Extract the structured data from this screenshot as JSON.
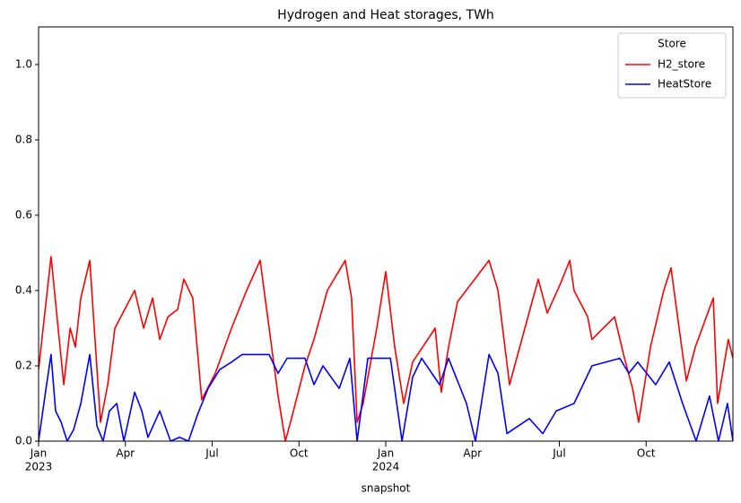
{
  "chart_data": {
    "type": "line",
    "title": "Hydrogen and Heat storages, TWh",
    "xlabel": "snapshot",
    "legend_title": "Store",
    "legend": "upper right",
    "xlim": [
      0,
      24
    ],
    "xticks": [
      {
        "value": 0,
        "label": "Jan"
      },
      {
        "value": 3,
        "label": "Apr"
      },
      {
        "value": 6,
        "label": "Jul"
      },
      {
        "value": 9,
        "label": "Oct"
      },
      {
        "value": 12,
        "label": "Jan"
      },
      {
        "value": 15,
        "label": "Apr"
      },
      {
        "value": 18,
        "label": "Jul"
      },
      {
        "value": 21,
        "label": "Oct"
      }
    ],
    "x_year_labels": [
      {
        "value": 0,
        "label": "2023"
      },
      {
        "value": 12,
        "label": "2024"
      }
    ],
    "ylim": [
      0,
      1.1
    ],
    "yticks": [
      {
        "value": 0,
        "label": "0.0"
      },
      0.2,
      0.4,
      0.6,
      0.8,
      {
        "value": 1,
        "label": "1.0"
      }
    ],
    "series": [
      {
        "name": "H2_store",
        "color": "#ff0000",
        "x": [
          0,
          0.43,
          0.87,
          1.09,
          1.27,
          1.46,
          1.77,
          2.14,
          2.39,
          2.64,
          3.32,
          3.63,
          3.94,
          4.19,
          4.47,
          4.81,
          5.02,
          5.33,
          5.64,
          6.11,
          6.67,
          7.19,
          7.66,
          7.97,
          8.28,
          8.53,
          8.74,
          9.21,
          9.52,
          9.98,
          10.6,
          10.82,
          11.01,
          11.22,
          11.69,
          12,
          12.31,
          12.62,
          12.93,
          13.71,
          13.92,
          14.17,
          14.48,
          15.57,
          15.88,
          16.28,
          16.81,
          17.27,
          17.58,
          18.05,
          18.36,
          18.51,
          18.98,
          19.13,
          19.91,
          20.22,
          20.53,
          20.74,
          21.15,
          21.61,
          21.86,
          22.14,
          22.39,
          22.7,
          23.32,
          23.47,
          23.84,
          24
        ],
        "values": [
          0.19,
          0.49,
          0.15,
          0.3,
          0.25,
          0.38,
          0.48,
          0.05,
          0.15,
          0.3,
          0.4,
          0.3,
          0.38,
          0.27,
          0.33,
          0.35,
          0.43,
          0.38,
          0.11,
          0.18,
          0.3,
          0.4,
          0.48,
          0.3,
          0.12,
          0,
          0.06,
          0.2,
          0.27,
          0.4,
          0.48,
          0.38,
          0.05,
          0.1,
          0.3,
          0.45,
          0.25,
          0.1,
          0.21,
          0.3,
          0.13,
          0.25,
          0.37,
          0.48,
          0.4,
          0.15,
          0.3,
          0.43,
          0.34,
          0.42,
          0.48,
          0.4,
          0.33,
          0.27,
          0.33,
          0.23,
          0.14,
          0.05,
          0.25,
          0.4,
          0.46,
          0.3,
          0.16,
          0.25,
          0.38,
          0.1,
          0.27,
          0.22
        ]
      },
      {
        "name": "HeatStore",
        "color": "#0000ff",
        "x": [
          0,
          0.22,
          0.43,
          0.59,
          0.78,
          0.99,
          1.21,
          1.46,
          1.77,
          2.02,
          2.23,
          2.45,
          2.7,
          2.95,
          3.32,
          3.57,
          3.78,
          4.19,
          4.56,
          4.87,
          5.18,
          5.49,
          5.86,
          6.26,
          6.67,
          7.04,
          7.97,
          8.28,
          8.59,
          9.21,
          9.52,
          9.83,
          10.39,
          10.76,
          11.01,
          11.38,
          12.16,
          12.56,
          12.93,
          13.24,
          13.86,
          14.17,
          14.79,
          15.1,
          15.57,
          15.88,
          16.19,
          16.96,
          17.43,
          17.89,
          18.51,
          19.13,
          20.09,
          20.4,
          20.71,
          21.33,
          21.8,
          22.26,
          22.73,
          23.19,
          23.5,
          23.81,
          24
        ],
        "values": [
          0,
          0.12,
          0.23,
          0.08,
          0.05,
          0,
          0.03,
          0.1,
          0.23,
          0.04,
          0,
          0.08,
          0.1,
          0,
          0.13,
          0.08,
          0.01,
          0.08,
          0,
          0.01,
          0,
          0.07,
          0.14,
          0.19,
          0.21,
          0.23,
          0.23,
          0.18,
          0.22,
          0.22,
          0.15,
          0.2,
          0.14,
          0.22,
          0,
          0.22,
          0.22,
          0,
          0.17,
          0.22,
          0.15,
          0.22,
          0.1,
          0,
          0.23,
          0.18,
          0.02,
          0.06,
          0.02,
          0.08,
          0.1,
          0.2,
          0.22,
          0.18,
          0.21,
          0.15,
          0.21,
          0.1,
          0,
          0.12,
          0,
          0.1,
          0
        ]
      }
    ]
  }
}
